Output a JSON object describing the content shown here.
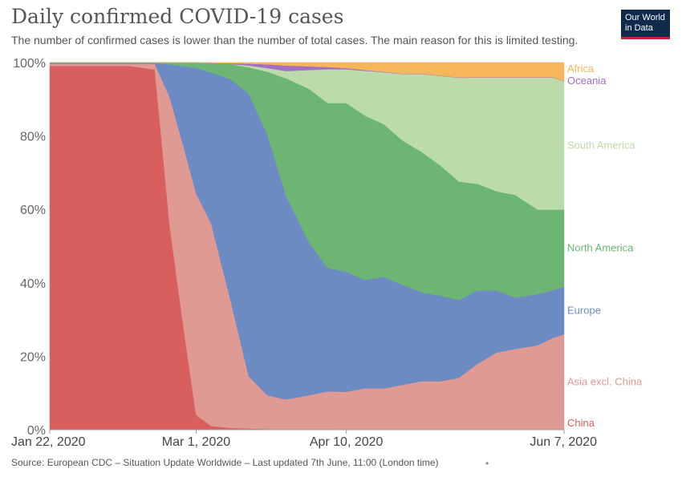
{
  "header": {
    "title": "Daily confirmed COVID-19 cases",
    "subtitle": "The number of confirmed cases is lower than the number of total cases. The main reason for this is limited testing."
  },
  "logo": {
    "line1": "Our World",
    "line2": "in Data"
  },
  "footer": {
    "source": "Source: European CDC – Situation Update Worldwide – Last updated 7th June, 11:00 (London time)"
  },
  "chart_data": {
    "type": "area",
    "stacked": "percent",
    "x": [
      "2020-01-22",
      "2020-02-05",
      "2020-02-12",
      "2020-02-19",
      "2020-02-23",
      "2020-02-27",
      "2020-03-01",
      "2020-03-05",
      "2020-03-10",
      "2020-03-15",
      "2020-03-20",
      "2020-03-25",
      "2020-03-31",
      "2020-04-05",
      "2020-04-10",
      "2020-04-15",
      "2020-04-20",
      "2020-04-25",
      "2020-04-30",
      "2020-05-05",
      "2020-05-10",
      "2020-05-15",
      "2020-05-20",
      "2020-05-25",
      "2020-05-31",
      "2020-06-04",
      "2020-06-07"
    ],
    "series": [
      {
        "name": "China",
        "color": "#d95f5f",
        "values": [
          99,
          99,
          99,
          98,
          55,
          25,
          4,
          1,
          0.5,
          0.3,
          0.2,
          0.2,
          0.2,
          0.2,
          0.1,
          0.1,
          0.1,
          0.1,
          0.1,
          0,
          0,
          0,
          0,
          0,
          0,
          0,
          0
        ]
      },
      {
        "name": "Asia excl. China",
        "color": "#df9a94",
        "values": [
          0.5,
          0.5,
          0.5,
          1.5,
          35,
          50,
          60,
          55,
          35,
          14,
          9,
          8,
          9,
          10,
          10,
          11,
          11,
          12,
          13,
          13,
          14,
          18,
          21,
          22,
          23,
          25,
          26
        ]
      },
      {
        "name": "Europe",
        "color": "#6d8bc3",
        "values": [
          0.3,
          0.3,
          0.3,
          0.3,
          9,
          23,
          34,
          41,
          59,
          76,
          70,
          55,
          41,
          33,
          32,
          29,
          30,
          27,
          24,
          23,
          21,
          20,
          17,
          14,
          14,
          13,
          13
        ]
      },
      {
        "name": "North America",
        "color": "#6cb573",
        "values": [
          0.1,
          0.1,
          0.1,
          0.1,
          0.5,
          1,
          1.5,
          2.5,
          4,
          7,
          17,
          32,
          41,
          44,
          45,
          44,
          41,
          39,
          38,
          35,
          32,
          29,
          27,
          28,
          23,
          22,
          21
        ]
      },
      {
        "name": "South America",
        "color": "#bcdbab",
        "values": [
          0,
          0,
          0,
          0,
          0,
          0,
          0,
          0,
          0,
          0.5,
          1,
          2,
          5,
          9,
          9,
          12,
          14,
          18,
          21,
          24,
          28,
          29,
          31,
          32,
          36,
          36,
          35
        ]
      },
      {
        "name": "Oceania",
        "color": "#a46ec1",
        "values": [
          0,
          0,
          0,
          0,
          0,
          0,
          0,
          0.1,
          0.2,
          0.5,
          1,
          1.5,
          1,
          0.6,
          0.3,
          0.2,
          0.1,
          0.1,
          0.1,
          0.1,
          0.1,
          0.1,
          0.1,
          0.1,
          0.1,
          0.1,
          0.1
        ]
      },
      {
        "name": "Africa",
        "color": "#f6b65a",
        "values": [
          0,
          0,
          0,
          0,
          0,
          0,
          0,
          0.1,
          0.2,
          0.3,
          0.5,
          0.8,
          1,
          1.2,
          1.5,
          2,
          2.5,
          3,
          3,
          3.5,
          4,
          4,
          4,
          4,
          4,
          4,
          5
        ]
      }
    ],
    "xticks": [
      {
        "date": "2020-01-22",
        "label": "Jan 22, 2020"
      },
      {
        "date": "2020-03-01",
        "label": "Mar 1, 2020"
      },
      {
        "date": "2020-04-10",
        "label": "Apr 10, 2020"
      },
      {
        "date": "2020-06-07",
        "label": "Jun 7, 2020"
      }
    ],
    "yticks": [
      {
        "value": 0,
        "label": "0%"
      },
      {
        "value": 20,
        "label": "20%"
      },
      {
        "value": 40,
        "label": "40%"
      },
      {
        "value": 60,
        "label": "60%"
      },
      {
        "value": 80,
        "label": "80%"
      },
      {
        "value": 100,
        "label": "100%"
      }
    ],
    "ylim": [
      0,
      100
    ],
    "xlim": [
      "2020-01-22",
      "2020-06-07"
    ],
    "grid": "horizontal-dashed",
    "legend": "right-end-labels"
  }
}
